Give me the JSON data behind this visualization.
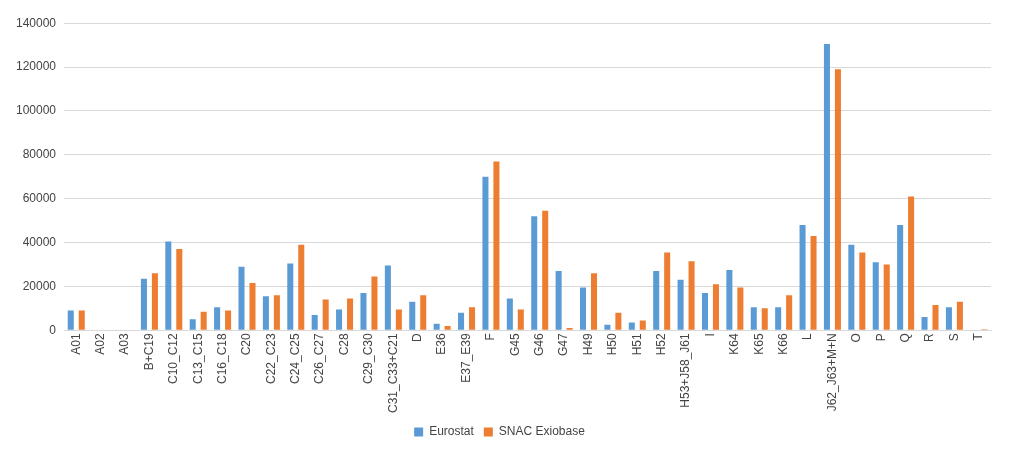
{
  "chart_data": {
    "type": "bar",
    "categories": [
      "A01",
      "A02",
      "A03",
      "B+C19",
      "C10_C12",
      "C13_C15",
      "C16_C18",
      "C20",
      "C22_C23",
      "C24_C25",
      "C26_C27",
      "C28",
      "C29_C30",
      "C31_C33+C21",
      "D",
      "E36",
      "E37_E39",
      "F",
      "G45",
      "G46",
      "G47",
      "H49",
      "H50",
      "H51",
      "H52",
      "H53+J58_J61",
      "I",
      "K64",
      "K65",
      "K66",
      "L",
      "J62_J63+M+N",
      "O",
      "P",
      "Q",
      "R",
      "S",
      "T"
    ],
    "series": [
      {
        "name": "Eurostat",
        "color": "#5b9bd5",
        "values": [
          9000,
          0,
          0,
          23500,
          40500,
          5000,
          10500,
          29000,
          15500,
          30500,
          7000,
          9500,
          17000,
          29500,
          13000,
          3000,
          8000,
          70000,
          14500,
          52000,
          27000,
          19500,
          2500,
          3500,
          27000,
          23000,
          17000,
          27500,
          10500,
          10500,
          48000,
          130500,
          39000,
          31000,
          48000,
          6000,
          10500,
          0
        ]
      },
      {
        "name": "SNAC Exiobase",
        "color": "#ed7d31",
        "values": [
          9000,
          0,
          0,
          26000,
          37000,
          8500,
          9000,
          21500,
          16000,
          39000,
          14000,
          14500,
          24500,
          9500,
          16000,
          2000,
          10500,
          77000,
          9500,
          54500,
          1000,
          26000,
          8000,
          4500,
          35500,
          31500,
          21000,
          19500,
          10000,
          16000,
          43000,
          119000,
          35500,
          30000,
          61000,
          11500,
          13000,
          500
        ]
      }
    ],
    "ylim": [
      0,
      140000
    ],
    "yticks": [
      0,
      20000,
      40000,
      60000,
      80000,
      100000,
      120000,
      140000
    ],
    "grid": "y",
    "legend": "bottom"
  }
}
